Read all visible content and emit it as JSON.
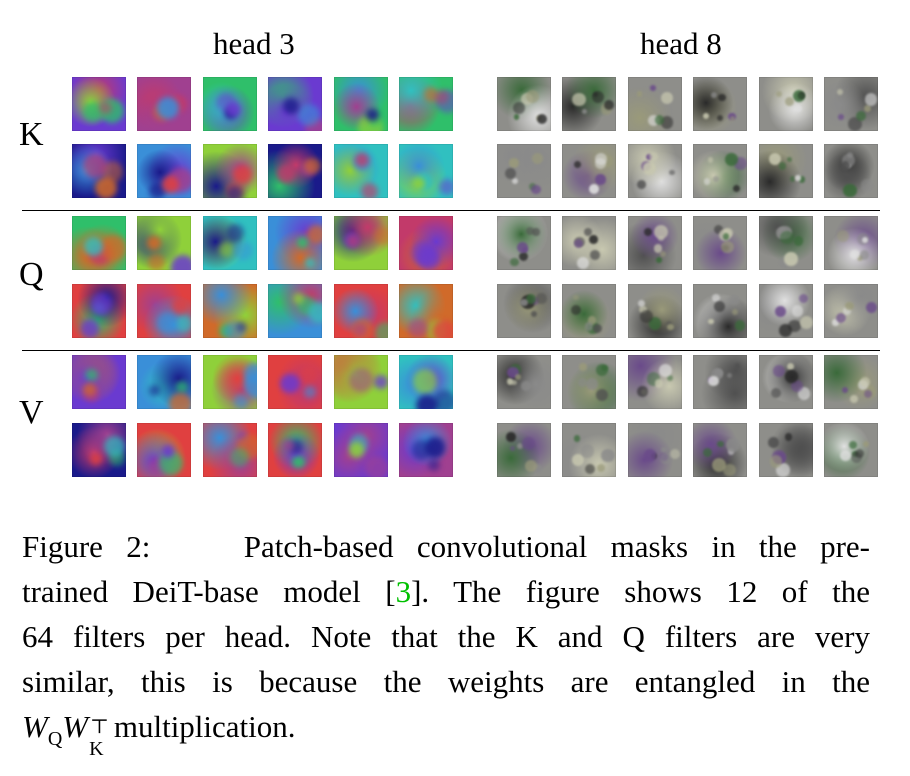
{
  "figure": {
    "heads": [
      {
        "label": "head 3",
        "style": "color"
      },
      {
        "label": "head 8",
        "style": "gray"
      }
    ],
    "rows": [
      {
        "label": "K"
      },
      {
        "label": "Q"
      },
      {
        "label": "V"
      }
    ],
    "filters_per_row": 12,
    "colors": {
      "head3_palette": [
        "#3a8fd8",
        "#c23a6a",
        "#2fbf6a",
        "#d06a2a",
        "#6a3ad0",
        "#8fd03a",
        "#1a1a8a",
        "#e04040",
        "#30c0c0",
        "#a04090"
      ],
      "head8_palette": [
        "#8a8a8a",
        "#c8c8b0",
        "#505050",
        "#3a6a3a",
        "#6a4a8a",
        "#e0e0e0",
        "#9a9a7a",
        "#2a2a2a"
      ]
    }
  },
  "caption": {
    "label": "Figure 2:",
    "line1_rest": "Patch-based convolutional masks in the pre-",
    "line2_a": "trained DeiT-base model [",
    "ref": "3",
    "line2_b": "]. The figure shows 12 of the",
    "line3": "64 filters per head. Note that the K and Q filters are very",
    "line4": "similar, this is because the weights are entangled in the",
    "math_w1": "W",
    "math_sub1": "Q",
    "math_w2": "W",
    "math_sup2": "⊤",
    "math_sub2": "K",
    "line5_rest": " multiplication."
  }
}
